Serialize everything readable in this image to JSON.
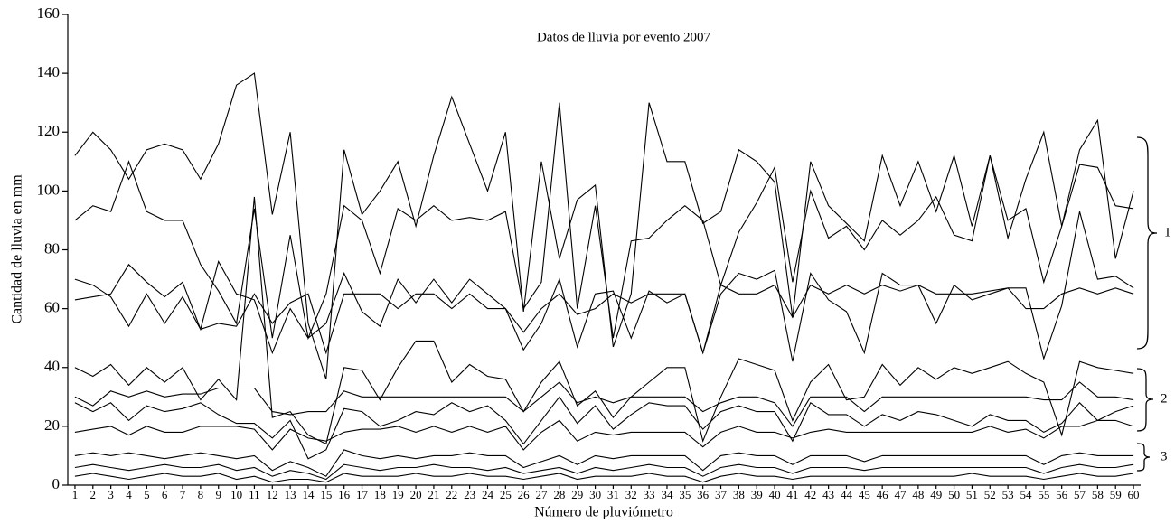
{
  "chart_data": {
    "type": "line",
    "title": "Datos de lluvia por evento 2007",
    "x_label": "Número de pluviómetro",
    "y_label": "Cantidad de lluvia en mm",
    "annotations": [
      "1",
      "2",
      "3"
    ],
    "x": [
      1,
      2,
      3,
      4,
      5,
      6,
      7,
      8,
      9,
      10,
      11,
      12,
      13,
      14,
      15,
      16,
      17,
      18,
      19,
      20,
      21,
      22,
      23,
      24,
      25,
      26,
      27,
      28,
      29,
      30,
      31,
      32,
      33,
      34,
      35,
      36,
      37,
      38,
      39,
      40,
      41,
      42,
      43,
      44,
      45,
      46,
      47,
      48,
      49,
      50,
      51,
      52,
      53,
      54,
      55,
      56,
      57,
      58,
      59,
      60
    ],
    "xlim": [
      0.6,
      60.4
    ],
    "xticks": [
      1,
      2,
      3,
      4,
      5,
      6,
      7,
      8,
      9,
      10,
      11,
      12,
      13,
      14,
      15,
      16,
      17,
      18,
      19,
      20,
      21,
      22,
      23,
      24,
      25,
      26,
      27,
      28,
      29,
      30,
      31,
      32,
      33,
      34,
      35,
      36,
      37,
      38,
      39,
      40,
      41,
      42,
      43,
      44,
      45,
      46,
      47,
      48,
      49,
      50,
      51,
      52,
      53,
      54,
      55,
      56,
      57,
      58,
      59,
      60
    ],
    "ylim": [
      0,
      160
    ],
    "yticks": [
      0,
      20,
      40,
      60,
      80,
      100,
      120,
      140,
      160
    ],
    "series": [
      {
        "color": "#000000",
        "values": [
          112,
          120,
          114,
          104,
          114,
          116,
          114,
          104,
          116,
          136,
          140,
          92,
          120,
          55,
          36,
          114,
          92,
          100,
          110,
          88,
          112,
          132,
          116,
          100,
          120,
          59,
          110,
          77,
          97,
          102,
          47,
          65,
          130,
          110,
          110,
          89,
          93,
          114,
          110,
          103,
          57,
          110,
          95,
          89,
          83,
          112,
          95,
          110,
          93,
          112,
          88,
          112,
          84,
          104,
          120,
          88,
          114,
          124,
          77,
          100
        ]
      },
      {
        "color": "#000000",
        "values": [
          90,
          95,
          93,
          110,
          93,
          90,
          90,
          75,
          66,
          55,
          94,
          50,
          85,
          50,
          65,
          95,
          90,
          72,
          94,
          90,
          95,
          90,
          91,
          90,
          93,
          60,
          69,
          130,
          60,
          95,
          50,
          83,
          84,
          90,
          95,
          90,
          68,
          86,
          96,
          108,
          69,
          100,
          84,
          88,
          80,
          90,
          85,
          90,
          98,
          85,
          83,
          112,
          90,
          94,
          69,
          88,
          109,
          108,
          95,
          94
        ]
      },
      {
        "color": "#000000",
        "values": [
          63,
          64,
          65,
          75,
          69,
          64,
          69,
          53,
          76,
          65,
          63,
          45,
          60,
          50,
          55,
          72,
          59,
          54,
          70,
          62,
          70,
          62,
          70,
          65,
          60,
          46,
          55,
          70,
          47,
          65,
          66,
          50,
          66,
          62,
          65,
          45,
          65,
          72,
          70,
          73,
          42,
          72,
          63,
          59,
          45,
          72,
          68,
          68,
          55,
          68,
          63,
          65,
          67,
          67,
          43,
          61,
          93,
          70,
          71,
          67
        ]
      },
      {
        "color": "#000000",
        "values": [
          70,
          68,
          64,
          54,
          65,
          55,
          64,
          53,
          55,
          54,
          65,
          55,
          62,
          65,
          45,
          65,
          65,
          65,
          60,
          65,
          65,
          60,
          65,
          60,
          60,
          52,
          60,
          65,
          58,
          60,
          65,
          62,
          65,
          65,
          65,
          45,
          68,
          65,
          65,
          68,
          57,
          68,
          65,
          68,
          65,
          68,
          66,
          68,
          65,
          65,
          65,
          66,
          67,
          60,
          60,
          65,
          67,
          65,
          67,
          65
        ]
      },
      {
        "color": "#000000",
        "values": [
          40,
          37,
          41,
          34,
          40,
          35,
          40,
          29,
          36,
          29,
          98,
          23,
          25,
          17,
          14,
          40,
          39,
          29,
          40,
          49,
          49,
          35,
          41,
          37,
          36,
          25,
          35,
          42,
          27,
          32,
          23,
          30,
          35,
          40,
          40,
          15,
          30,
          43,
          41,
          39,
          22,
          35,
          41,
          29,
          30,
          41,
          34,
          40,
          36,
          40,
          38,
          40,
          42,
          38,
          35,
          17,
          42,
          40,
          39,
          38
        ]
      },
      {
        "color": "#000000",
        "values": [
          30,
          27,
          32,
          30,
          32,
          30,
          31,
          31,
          33,
          33,
          33,
          25,
          24,
          25,
          25,
          32,
          30,
          30,
          30,
          30,
          30,
          30,
          30,
          30,
          30,
          25,
          30,
          35,
          28,
          30,
          28,
          30,
          30,
          30,
          30,
          25,
          28,
          30,
          30,
          28,
          20,
          30,
          30,
          30,
          25,
          30,
          30,
          30,
          30,
          30,
          30,
          30,
          30,
          30,
          29,
          29,
          35,
          30,
          30,
          29
        ]
      },
      {
        "color": "#000000",
        "values": [
          28,
          25,
          28,
          22,
          27,
          25,
          26,
          28,
          24,
          21,
          21,
          16,
          22,
          9,
          12,
          26,
          25,
          20,
          22,
          25,
          24,
          28,
          25,
          27,
          22,
          14,
          22,
          30,
          21,
          27,
          19,
          24,
          28,
          27,
          27,
          19,
          25,
          27,
          25,
          25,
          15,
          28,
          24,
          24,
          20,
          24,
          22,
          25,
          24,
          22,
          20,
          24,
          22,
          22,
          18,
          21,
          28,
          22,
          25,
          27
        ]
      },
      {
        "color": "#000000",
        "values": [
          18,
          19,
          20,
          17,
          20,
          18,
          18,
          20,
          20,
          20,
          19,
          12,
          19,
          16,
          15,
          18,
          19,
          19,
          20,
          18,
          20,
          18,
          20,
          18,
          20,
          12,
          18,
          22,
          15,
          18,
          17,
          18,
          18,
          18,
          18,
          13,
          18,
          20,
          18,
          18,
          16,
          18,
          19,
          18,
          18,
          18,
          18,
          18,
          18,
          18,
          18,
          20,
          18,
          19,
          16,
          20,
          20,
          22,
          22,
          20
        ]
      },
      {
        "color": "#000000",
        "values": [
          10,
          11,
          10,
          11,
          10,
          9,
          10,
          11,
          10,
          9,
          10,
          5,
          8,
          6,
          3,
          12,
          10,
          9,
          10,
          9,
          10,
          10,
          11,
          10,
          10,
          6,
          8,
          10,
          7,
          10,
          9,
          10,
          10,
          10,
          10,
          5,
          10,
          11,
          10,
          10,
          7,
          10,
          10,
          10,
          8,
          10,
          10,
          10,
          10,
          10,
          10,
          10,
          10,
          10,
          7,
          10,
          11,
          10,
          10,
          10
        ]
      },
      {
        "color": "#000000",
        "values": [
          6,
          7,
          6,
          5,
          6,
          7,
          6,
          6,
          7,
          5,
          6,
          3,
          5,
          4,
          2,
          7,
          6,
          5,
          6,
          6,
          7,
          6,
          6,
          5,
          6,
          4,
          5,
          6,
          4,
          6,
          5,
          6,
          7,
          6,
          6,
          3,
          6,
          7,
          6,
          6,
          4,
          6,
          6,
          6,
          5,
          6,
          6,
          6,
          6,
          6,
          6,
          6,
          6,
          6,
          4,
          6,
          7,
          6,
          6,
          7
        ]
      },
      {
        "color": "#000000",
        "values": [
          3,
          4,
          3,
          2,
          3,
          4,
          3,
          3,
          4,
          2,
          3,
          1,
          2,
          2,
          1,
          4,
          3,
          3,
          3,
          4,
          3,
          3,
          4,
          3,
          3,
          2,
          3,
          4,
          2,
          3,
          3,
          3,
          4,
          3,
          3,
          1,
          3,
          4,
          3,
          3,
          2,
          3,
          3,
          3,
          3,
          3,
          3,
          3,
          3,
          3,
          4,
          3,
          3,
          3,
          2,
          3,
          4,
          3,
          3,
          4
        ]
      }
    ]
  }
}
